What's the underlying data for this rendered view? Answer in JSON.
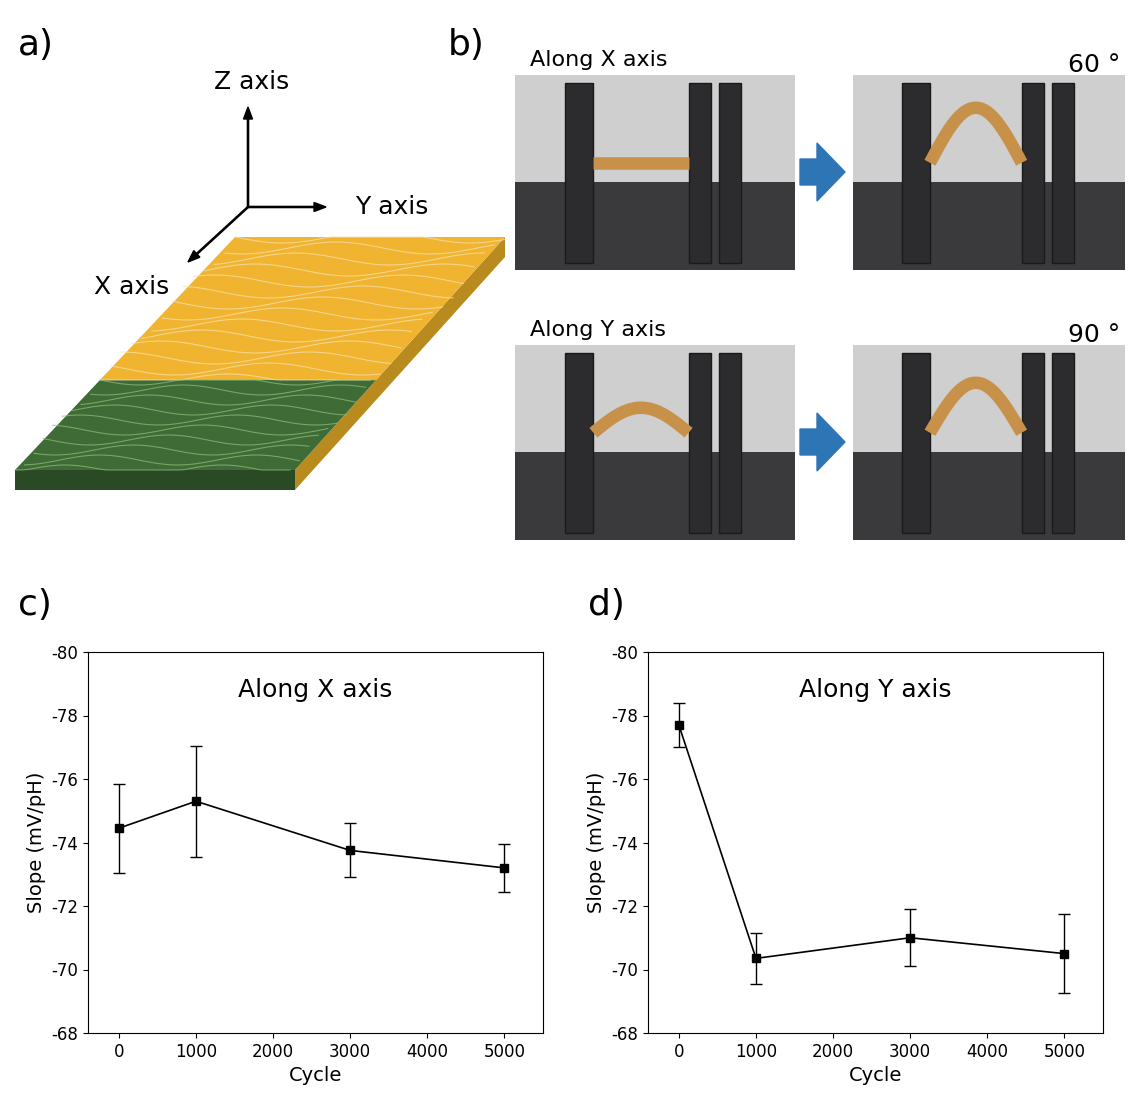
{
  "panel_a": {
    "label": "a)",
    "axes": {
      "z": "Z axis",
      "y": "Y axis",
      "x": "X axis"
    }
  },
  "panel_b": {
    "label": "b)",
    "rows": [
      {
        "title": "Along X axis",
        "angle": "60 °"
      },
      {
        "title": "Along Y axis",
        "angle": "90 °"
      }
    ]
  },
  "panel_labels": [
    "c)",
    "d)"
  ],
  "chart_data": [
    {
      "type": "line",
      "title": "Along X axis",
      "x_label": "Cycle",
      "y_label": "Slope (mV/pH)",
      "x": [
        0,
        1000,
        3000,
        5000
      ],
      "values": [
        -74.45,
        -75.3,
        -73.75,
        -73.2
      ],
      "errors": [
        1.4,
        1.75,
        0.85,
        0.75
      ],
      "color": "#000000",
      "marker": "square",
      "xlim": [
        -400,
        5500
      ],
      "xticks": [
        0,
        1000,
        2000,
        3000,
        4000,
        5000
      ],
      "ylim": [
        -68,
        -80
      ],
      "yticks": [
        -80,
        -78,
        -76,
        -74,
        -72,
        -70,
        -68
      ]
    },
    {
      "type": "line",
      "title": "Along Y axis",
      "x_label": "Cycle",
      "y_label": "Slope (mV/pH)",
      "x": [
        0,
        1000,
        3000,
        5000
      ],
      "values": [
        -77.7,
        -70.35,
        -71.0,
        -70.5
      ],
      "errors": [
        0.7,
        0.8,
        0.9,
        1.25
      ],
      "color": "#000000",
      "marker": "square",
      "xlim": [
        -400,
        5500
      ],
      "xticks": [
        0,
        1000,
        2000,
        3000,
        4000,
        5000
      ],
      "ylim": [
        -68,
        -80
      ],
      "yticks": [
        -80,
        -78,
        -76,
        -74,
        -72,
        -70,
        -68
      ]
    }
  ]
}
